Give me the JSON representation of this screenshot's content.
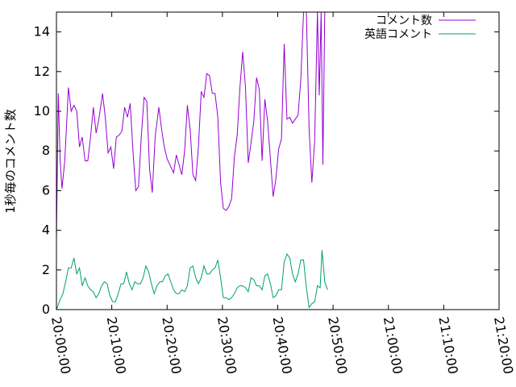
{
  "chart_data": {
    "type": "line",
    "title": "",
    "xlabel": "",
    "ylabel": "1秒毎のコメント数",
    "xlim": [
      "20:00:00",
      "21:20:00"
    ],
    "ylim": [
      0,
      15
    ],
    "xticks": [
      "20:00:00",
      "20:10:00",
      "20:20:00",
      "20:30:00",
      "20:40:00",
      "20:50:00",
      "21:00:00",
      "21:10:00",
      "21:20:00"
    ],
    "yticks": [
      0,
      2,
      4,
      6,
      8,
      10,
      12,
      14
    ],
    "grid": false,
    "legend_position": "top-right",
    "series": [
      {
        "name": "コメント数",
        "color": "#9400d3",
        "points": [
          [
            "20:00:00",
            3.6
          ],
          [
            "20:00:20",
            10.9
          ],
          [
            "20:00:40",
            7.5
          ],
          [
            "20:01:00",
            6.1
          ],
          [
            "20:01:30",
            7.5
          ],
          [
            "20:02:10",
            11.2
          ],
          [
            "20:02:40",
            10.0
          ],
          [
            "20:03:10",
            10.3
          ],
          [
            "20:03:40",
            10.0
          ],
          [
            "20:04:10",
            8.2
          ],
          [
            "20:04:40",
            8.7
          ],
          [
            "20:05:10",
            7.5
          ],
          [
            "20:05:40",
            7.5
          ],
          [
            "20:06:10",
            8.7
          ],
          [
            "20:06:40",
            10.2
          ],
          [
            "20:07:10",
            8.9
          ],
          [
            "20:07:40",
            9.6
          ],
          [
            "20:08:20",
            10.9
          ],
          [
            "20:08:50",
            9.7
          ],
          [
            "20:09:20",
            7.9
          ],
          [
            "20:09:50",
            8.2
          ],
          [
            "20:10:20",
            7.1
          ],
          [
            "20:10:50",
            8.7
          ],
          [
            "20:11:20",
            8.8
          ],
          [
            "20:11:50",
            9.0
          ],
          [
            "20:12:20",
            10.2
          ],
          [
            "20:12:50",
            9.7
          ],
          [
            "20:13:20",
            10.4
          ],
          [
            "20:13:50",
            8.0
          ],
          [
            "20:14:20",
            6.0
          ],
          [
            "20:14:50",
            6.2
          ],
          [
            "20:15:20",
            8.7
          ],
          [
            "20:15:50",
            10.7
          ],
          [
            "20:16:20",
            10.5
          ],
          [
            "20:16:50",
            7.1
          ],
          [
            "20:17:20",
            5.9
          ],
          [
            "20:17:50",
            8.7
          ],
          [
            "20:18:30",
            10.2
          ],
          [
            "20:19:00",
            9.1
          ],
          [
            "20:19:30",
            8.2
          ],
          [
            "20:20:00",
            7.6
          ],
          [
            "20:20:40",
            7.2
          ],
          [
            "20:21:10",
            6.9
          ],
          [
            "20:21:40",
            7.8
          ],
          [
            "20:22:10",
            7.3
          ],
          [
            "20:22:40",
            6.8
          ],
          [
            "20:23:10",
            8.0
          ],
          [
            "20:23:40",
            10.3
          ],
          [
            "20:24:10",
            9.1
          ],
          [
            "20:24:40",
            6.8
          ],
          [
            "20:25:10",
            6.5
          ],
          [
            "20:25:40",
            8.2
          ],
          [
            "20:26:10",
            11.0
          ],
          [
            "20:26:40",
            10.7
          ],
          [
            "20:27:10",
            11.9
          ],
          [
            "20:27:40",
            11.8
          ],
          [
            "20:28:10",
            10.9
          ],
          [
            "20:28:40",
            10.9
          ],
          [
            "20:29:10",
            9.7
          ],
          [
            "20:29:40",
            6.4
          ],
          [
            "20:30:10",
            5.1
          ],
          [
            "20:30:40",
            5.0
          ],
          [
            "20:31:10",
            5.2
          ],
          [
            "20:31:40",
            5.6
          ],
          [
            "20:32:10",
            7.7
          ],
          [
            "20:32:40",
            8.8
          ],
          [
            "20:33:10",
            11.2
          ],
          [
            "20:33:40",
            13.0
          ],
          [
            "20:34:10",
            11.2
          ],
          [
            "20:34:40",
            7.4
          ],
          [
            "20:35:10",
            8.4
          ],
          [
            "20:35:40",
            9.5
          ],
          [
            "20:36:10",
            11.7
          ],
          [
            "20:36:40",
            11.1
          ],
          [
            "20:37:10",
            7.5
          ],
          [
            "20:37:40",
            10.6
          ],
          [
            "20:38:10",
            9.5
          ],
          [
            "20:38:40",
            7.6
          ],
          [
            "20:39:10",
            5.7
          ],
          [
            "20:39:40",
            6.6
          ],
          [
            "20:40:10",
            8.1
          ],
          [
            "20:40:40",
            8.6
          ],
          [
            "20:41:10",
            13.4
          ],
          [
            "20:41:40",
            9.6
          ],
          [
            "20:42:10",
            9.7
          ],
          [
            "20:42:40",
            9.4
          ],
          [
            "20:43:10",
            9.6
          ],
          [
            "20:43:40",
            9.8
          ],
          [
            "20:44:10",
            11.6
          ],
          [
            "20:44:40",
            15.0
          ],
          [
            "20:45:10",
            15.0
          ],
          [
            "20:45:40",
            9.1
          ],
          [
            "20:46:10",
            6.4
          ],
          [
            "20:46:40",
            8.5
          ],
          [
            "20:47:10",
            15.0
          ],
          [
            "20:47:30",
            10.8
          ],
          [
            "20:47:50",
            15.0
          ],
          [
            "20:48:10",
            7.3
          ],
          [
            "20:48:30",
            15.0
          ]
        ]
      },
      {
        "name": "英語コメント",
        "color": "#009e73",
        "points": [
          [
            "20:00:00",
            0.0
          ],
          [
            "20:00:40",
            0.5
          ],
          [
            "20:01:10",
            0.8
          ],
          [
            "20:01:40",
            1.4
          ],
          [
            "20:02:10",
            2.1
          ],
          [
            "20:02:40",
            2.1
          ],
          [
            "20:03:10",
            2.6
          ],
          [
            "20:03:40",
            1.8
          ],
          [
            "20:04:10",
            2.1
          ],
          [
            "20:04:40",
            1.2
          ],
          [
            "20:05:10",
            1.6
          ],
          [
            "20:05:40",
            1.2
          ],
          [
            "20:06:10",
            1.0
          ],
          [
            "20:06:40",
            0.9
          ],
          [
            "20:07:10",
            0.6
          ],
          [
            "20:07:40",
            0.8
          ],
          [
            "20:08:10",
            1.2
          ],
          [
            "20:08:40",
            1.4
          ],
          [
            "20:09:10",
            1.3
          ],
          [
            "20:09:40",
            0.7
          ],
          [
            "20:10:10",
            0.4
          ],
          [
            "20:10:40",
            0.4
          ],
          [
            "20:11:10",
            0.8
          ],
          [
            "20:11:40",
            1.3
          ],
          [
            "20:12:10",
            1.3
          ],
          [
            "20:12:40",
            1.9
          ],
          [
            "20:13:10",
            1.3
          ],
          [
            "20:13:40",
            1.0
          ],
          [
            "20:14:10",
            1.4
          ],
          [
            "20:14:40",
            1.3
          ],
          [
            "20:15:10",
            1.3
          ],
          [
            "20:15:40",
            1.6
          ],
          [
            "20:16:10",
            2.2
          ],
          [
            "20:16:40",
            1.9
          ],
          [
            "20:17:10",
            1.3
          ],
          [
            "20:17:40",
            0.8
          ],
          [
            "20:18:10",
            1.2
          ],
          [
            "20:18:40",
            1.4
          ],
          [
            "20:19:10",
            1.4
          ],
          [
            "20:19:40",
            1.7
          ],
          [
            "20:20:10",
            1.8
          ],
          [
            "20:20:40",
            1.4
          ],
          [
            "20:21:10",
            1.0
          ],
          [
            "20:21:40",
            0.8
          ],
          [
            "20:22:10",
            0.8
          ],
          [
            "20:22:40",
            1.0
          ],
          [
            "20:23:10",
            0.9
          ],
          [
            "20:23:40",
            1.2
          ],
          [
            "20:24:10",
            2.1
          ],
          [
            "20:24:40",
            2.2
          ],
          [
            "20:25:10",
            1.6
          ],
          [
            "20:25:40",
            1.3
          ],
          [
            "20:26:10",
            1.6
          ],
          [
            "20:26:40",
            2.2
          ],
          [
            "20:27:10",
            1.8
          ],
          [
            "20:27:40",
            1.8
          ],
          [
            "20:28:10",
            2.0
          ],
          [
            "20:28:40",
            2.1
          ],
          [
            "20:29:10",
            2.5
          ],
          [
            "20:29:40",
            1.6
          ],
          [
            "20:30:10",
            0.6
          ],
          [
            "20:30:40",
            0.6
          ],
          [
            "20:31:10",
            0.5
          ],
          [
            "20:31:40",
            0.6
          ],
          [
            "20:32:10",
            0.8
          ],
          [
            "20:32:40",
            1.1
          ],
          [
            "20:33:10",
            1.2
          ],
          [
            "20:33:40",
            1.2
          ],
          [
            "20:34:10",
            1.1
          ],
          [
            "20:34:40",
            0.9
          ],
          [
            "20:35:10",
            1.6
          ],
          [
            "20:35:40",
            1.5
          ],
          [
            "20:36:10",
            1.2
          ],
          [
            "20:36:40",
            1.2
          ],
          [
            "20:37:10",
            1.0
          ],
          [
            "20:37:40",
            1.7
          ],
          [
            "20:38:10",
            1.8
          ],
          [
            "20:38:40",
            1.3
          ],
          [
            "20:39:10",
            0.6
          ],
          [
            "20:39:40",
            0.7
          ],
          [
            "20:40:10",
            1.0
          ],
          [
            "20:40:40",
            1.0
          ],
          [
            "20:41:10",
            2.4
          ],
          [
            "20:41:40",
            2.8
          ],
          [
            "20:42:10",
            2.6
          ],
          [
            "20:42:40",
            1.8
          ],
          [
            "20:43:10",
            1.4
          ],
          [
            "20:43:40",
            1.8
          ],
          [
            "20:44:10",
            2.5
          ],
          [
            "20:44:40",
            2.5
          ],
          [
            "20:45:10",
            1.1
          ],
          [
            "20:45:40",
            0.1
          ],
          [
            "20:46:10",
            0.3
          ],
          [
            "20:46:40",
            0.4
          ],
          [
            "20:47:10",
            1.2
          ],
          [
            "20:47:40",
            1.1
          ],
          [
            "20:48:00",
            3.0
          ],
          [
            "20:48:30",
            1.4
          ],
          [
            "20:49:00",
            1.0
          ]
        ]
      }
    ]
  }
}
